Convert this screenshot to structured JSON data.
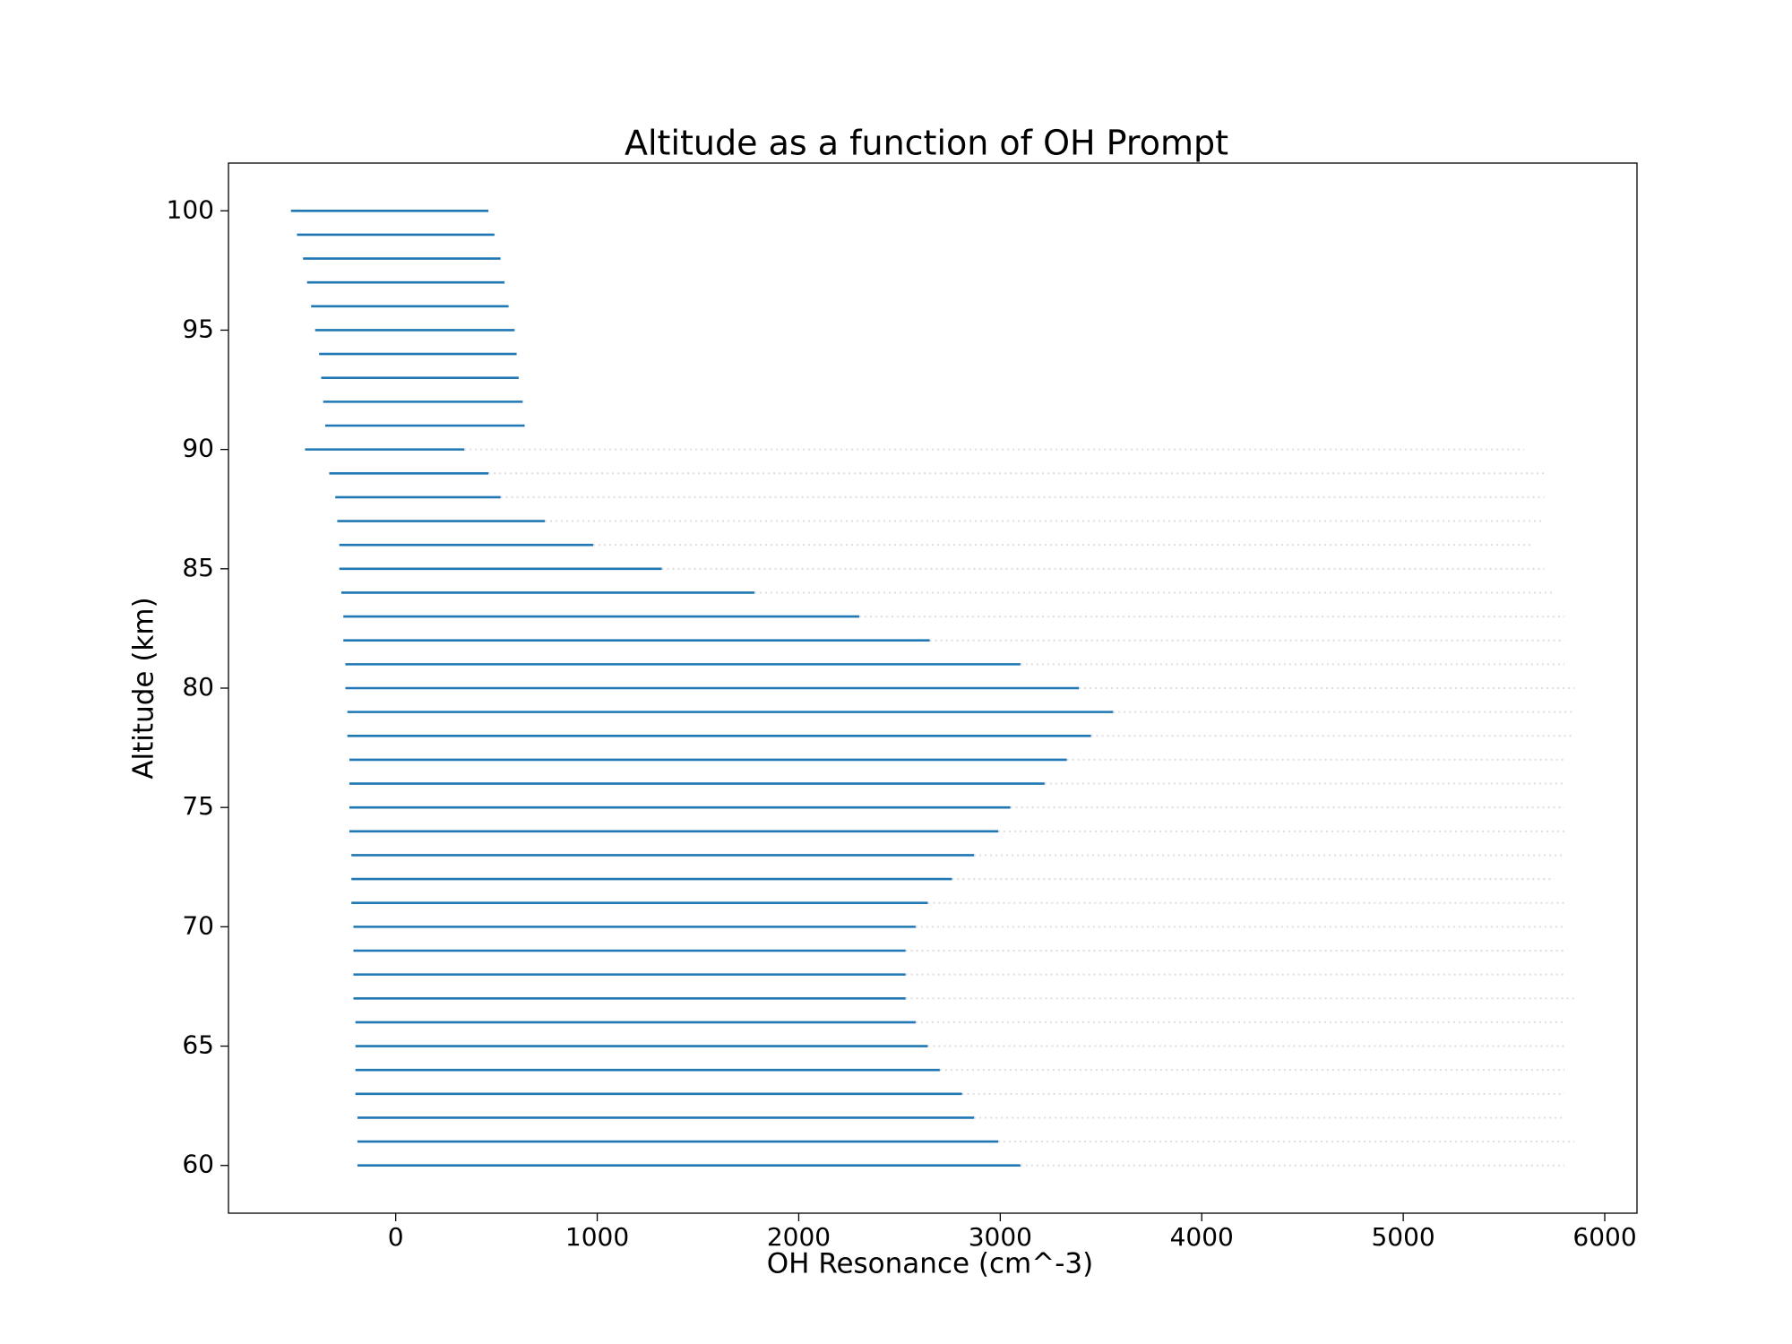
{
  "chart_data": {
    "type": "range",
    "title": "Altitude as a function of OH Prompt",
    "xlabel": "OH Resonance (cm^-3)",
    "ylabel": "Altitude (km)",
    "color": "#1f77b4",
    "tail_color": "#9a9ab0",
    "y": [
      100,
      99,
      98,
      97,
      96,
      95,
      94,
      93,
      92,
      91,
      90,
      89,
      88,
      87,
      86,
      85,
      84,
      83,
      82,
      81,
      80,
      79,
      78,
      77,
      76,
      75,
      74,
      73,
      72,
      71,
      70,
      69,
      68,
      67,
      66,
      65,
      64,
      63,
      62,
      61,
      60
    ],
    "x_start": [
      -520,
      -490,
      -460,
      -440,
      -420,
      -400,
      -380,
      -370,
      -360,
      -350,
      -450,
      -330,
      -300,
      -290,
      -280,
      -280,
      -270,
      -260,
      -260,
      -250,
      -250,
      -240,
      -240,
      -230,
      -230,
      -230,
      -230,
      -220,
      -220,
      -220,
      -210,
      -210,
      -210,
      -210,
      -200,
      -200,
      -200,
      -200,
      -190,
      -190,
      -190
    ],
    "x_end": [
      460,
      490,
      520,
      540,
      560,
      590,
      600,
      610,
      630,
      640,
      340,
      460,
      520,
      740,
      980,
      1320,
      1780,
      2300,
      2650,
      3100,
      3390,
      3560,
      3450,
      3330,
      3220,
      3050,
      2990,
      2870,
      2760,
      2640,
      2580,
      2530,
      2530,
      2530,
      2580,
      2640,
      2700,
      2810,
      2870,
      2990,
      3100
    ],
    "tail_end": [
      null,
      null,
      null,
      null,
      null,
      null,
      null,
      null,
      null,
      null,
      5600,
      5700,
      5700,
      5700,
      5650,
      5700,
      5750,
      5800,
      5800,
      5800,
      5850,
      5850,
      5850,
      5800,
      5800,
      5800,
      5800,
      5800,
      5750,
      5800,
      5800,
      5800,
      5800,
      5850,
      5800,
      5800,
      5800,
      5800,
      5800,
      5850,
      5800
    ],
    "xlim": [
      -830,
      6160
    ],
    "ylim": [
      58,
      102
    ],
    "xticks": [
      0,
      1000,
      2000,
      3000,
      4000,
      5000,
      6000
    ],
    "yticks": [
      60,
      65,
      70,
      75,
      80,
      85,
      90,
      95,
      100
    ],
    "grid": false
  }
}
